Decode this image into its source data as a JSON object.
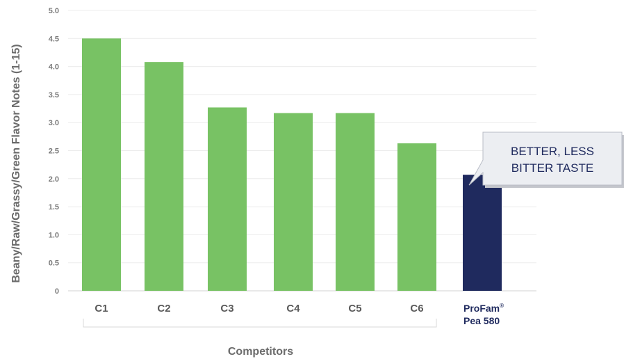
{
  "chart_data": {
    "type": "bar",
    "ylabel": "Beany/Raw/Grassy/Green Flavor Notes (1-15)",
    "xlabel": "Competitors",
    "ylim": [
      0,
      5.0
    ],
    "yticks": [
      "0",
      "0.5",
      "1.0",
      "1.5",
      "2.0",
      "2.5",
      "3.0",
      "3.5",
      "4.0",
      "4.5",
      "5.0"
    ],
    "grid": true,
    "categories": [
      "C1",
      "C2",
      "C3",
      "C4",
      "C5",
      "C6",
      "ProFam® Pea 580"
    ],
    "category_label_lines": [
      [
        "C1"
      ],
      [
        "C2"
      ],
      [
        "C3"
      ],
      [
        "C4"
      ],
      [
        "C5"
      ],
      [
        "C6"
      ],
      [
        "ProFam",
        "Pea 580"
      ]
    ],
    "highlight_superscript": "®",
    "values": [
      4.5,
      4.08,
      3.27,
      3.17,
      3.17,
      2.63,
      2.07
    ],
    "colors": {
      "competitor": "#78c264",
      "highlight": "#1f2a5e"
    },
    "highlight_index": 6,
    "annotation": {
      "lines": [
        "BETTER, LESS",
        "BITTER TASTE"
      ],
      "target_index": 6
    }
  }
}
